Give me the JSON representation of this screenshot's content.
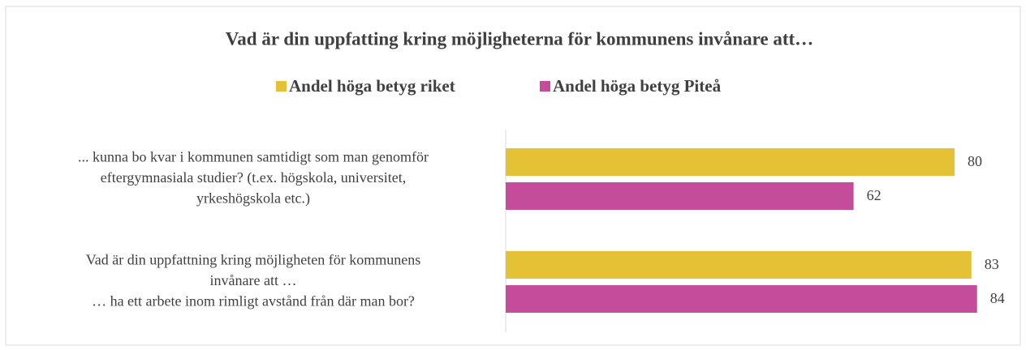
{
  "chart_data": {
    "type": "hbar",
    "title": "Vad är din uppfatting kring möjligheterna för kommunens invånare att…",
    "categories": [
      [
        "... kunna bo kvar i kommunen samtidigt som man genomför",
        "eftergymnasiala studier? (t.ex. högskola, universitet,",
        "yrkeshögskola etc.)"
      ],
      [
        "Vad är din uppfattning kring möjligheten för kommunens",
        "invånare att …",
        "… ha ett arbete inom rimligt avstånd från där man bor?"
      ]
    ],
    "series": [
      {
        "name": "Andel höga betyg riket",
        "color": "#E4C135",
        "values": [
          80,
          83
        ]
      },
      {
        "name": "Andel höga betyg Piteå",
        "color": "#C54B9B",
        "values": [
          62,
          84
        ]
      }
    ],
    "xlim": [
      0,
      92
    ],
    "legend": "top"
  }
}
